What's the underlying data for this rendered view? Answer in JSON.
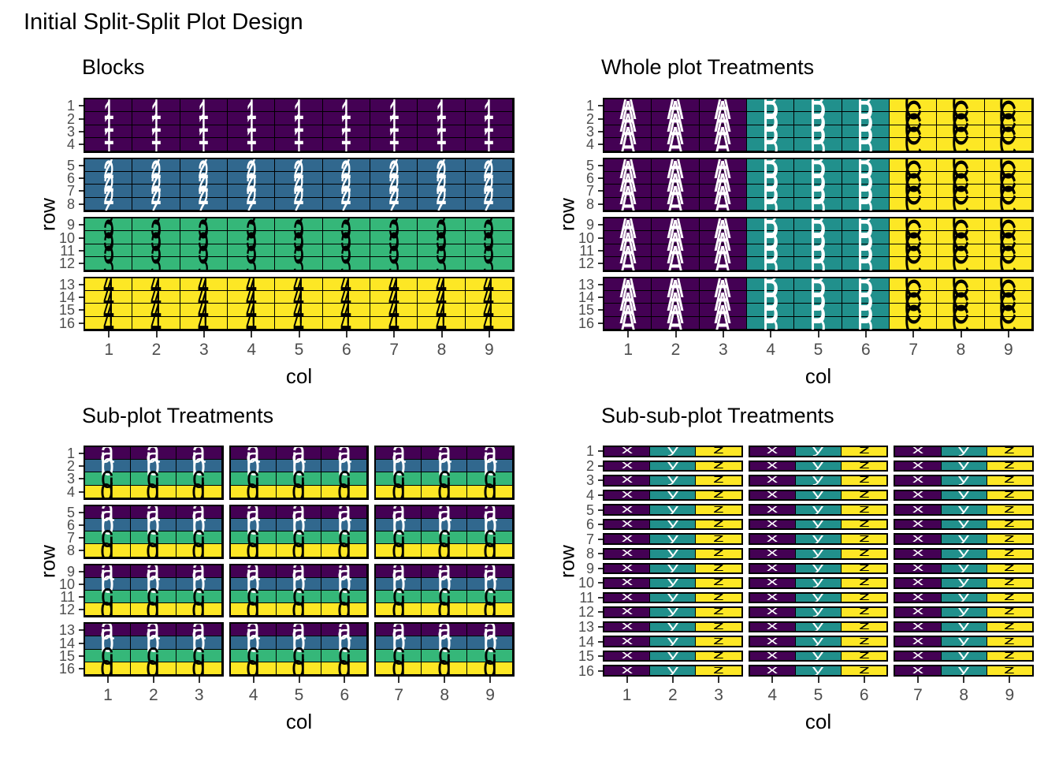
{
  "figure_title": "Initial Split-Split Plot Design",
  "axis": {
    "x_label": "col",
    "y_label": "row",
    "x_ticks": [
      "1",
      "2",
      "3",
      "4",
      "5",
      "6",
      "7",
      "8",
      "9"
    ],
    "y_ticks": [
      "1",
      "2",
      "3",
      "4",
      "5",
      "6",
      "7",
      "8",
      "9",
      "10",
      "11",
      "12",
      "13",
      "14",
      "15",
      "16"
    ]
  },
  "palette": {
    "purple": "#440154",
    "blue": "#31688E",
    "green": "#35B779",
    "teal": "#21908C",
    "yellow": "#FDE725",
    "grid_line": "#000000",
    "tick_text": "#4d4d4d",
    "tick_mark": "#333333"
  },
  "chart_data": [
    {
      "type": "heatmap",
      "title": "Blocks",
      "xlabel": "col",
      "ylabel": "row",
      "x_domain": [
        1,
        9
      ],
      "y_domain": [
        1,
        16
      ],
      "y_reversed": true,
      "grid_rows": 16,
      "grid_cols": 9,
      "facet_row_groups": 4,
      "facet_col_groups": 1,
      "value_mode": "row",
      "values_by_row": [
        "1",
        "1",
        "1",
        "1",
        "2",
        "2",
        "2",
        "2",
        "3",
        "3",
        "3",
        "3",
        "4",
        "4",
        "4",
        "4"
      ],
      "cell_styles": {
        "1": {
          "bg": "#440154",
          "fg": "#FFFFFF"
        },
        "2": {
          "bg": "#31688E",
          "fg": "#FFFFFF"
        },
        "3": {
          "bg": "#35B779",
          "fg": "#000000"
        },
        "4": {
          "bg": "#FDE725",
          "fg": "#000000"
        }
      }
    },
    {
      "type": "heatmap",
      "title": "Whole plot Treatments",
      "xlabel": "col",
      "ylabel": "row",
      "x_domain": [
        1,
        9
      ],
      "y_domain": [
        1,
        16
      ],
      "y_reversed": true,
      "grid_rows": 16,
      "grid_cols": 9,
      "facet_row_groups": 4,
      "facet_col_groups": 1,
      "value_mode": "col",
      "values_by_col": [
        "A",
        "A",
        "A",
        "B",
        "B",
        "B",
        "C",
        "C",
        "C"
      ],
      "cell_styles": {
        "A": {
          "bg": "#440154",
          "fg": "#FFFFFF"
        },
        "B": {
          "bg": "#21908C",
          "fg": "#FFFFFF"
        },
        "C": {
          "bg": "#FDE725",
          "fg": "#000000"
        }
      }
    },
    {
      "type": "heatmap",
      "title": "Sub-plot Treatments",
      "xlabel": "col",
      "ylabel": "row",
      "x_domain": [
        1,
        9
      ],
      "y_domain": [
        1,
        16
      ],
      "y_reversed": true,
      "grid_rows": 16,
      "grid_cols": 9,
      "facet_row_groups": 4,
      "facet_col_groups": 3,
      "value_mode": "row",
      "values_by_row": [
        "a",
        "b",
        "c",
        "d",
        "a",
        "b",
        "c",
        "d",
        "a",
        "b",
        "c",
        "d",
        "a",
        "b",
        "c",
        "d"
      ],
      "cell_styles": {
        "a": {
          "bg": "#440154",
          "fg": "#FFFFFF"
        },
        "b": {
          "bg": "#31688E",
          "fg": "#FFFFFF"
        },
        "c": {
          "bg": "#35B779",
          "fg": "#000000"
        },
        "d": {
          "bg": "#FDE725",
          "fg": "#000000"
        }
      }
    },
    {
      "type": "heatmap",
      "title": "Sub-sub-plot Treatments",
      "xlabel": "col",
      "ylabel": "row",
      "x_domain": [
        1,
        9
      ],
      "y_domain": [
        1,
        16
      ],
      "y_reversed": true,
      "grid_rows": 16,
      "grid_cols": 9,
      "facet_row_groups": 16,
      "facet_col_groups": 3,
      "value_mode": "col",
      "values_by_col": [
        "x",
        "y",
        "z",
        "x",
        "y",
        "z",
        "x",
        "y",
        "z"
      ],
      "cell_styles": {
        "x": {
          "bg": "#440154",
          "fg": "#FFFFFF"
        },
        "y": {
          "bg": "#21908C",
          "fg": "#FFFFFF"
        },
        "z": {
          "bg": "#FDE725",
          "fg": "#000000"
        }
      }
    }
  ]
}
